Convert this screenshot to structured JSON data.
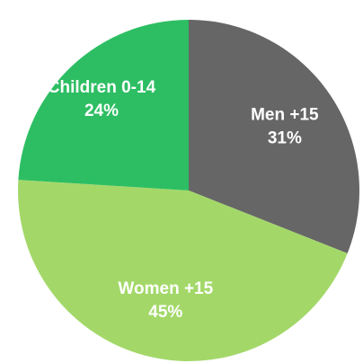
{
  "chart_data": {
    "type": "pie",
    "title": "",
    "categories": [
      "Men +15",
      "Women +15",
      "Children 0-14"
    ],
    "values": [
      31,
      45,
      24
    ],
    "value_labels": [
      "31%",
      "45%",
      "24%"
    ],
    "colors": [
      "#666666",
      "#a3d869",
      "#2dbe63"
    ],
    "start_angle_deg": 0,
    "direction": "clockwise",
    "legend": "none"
  }
}
